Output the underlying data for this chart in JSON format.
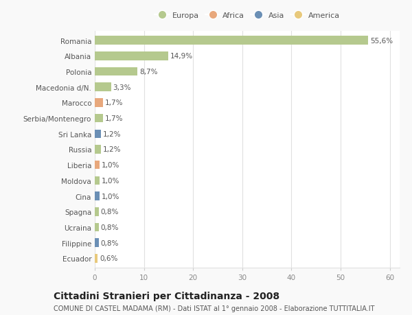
{
  "categories": [
    "Romania",
    "Albania",
    "Polonia",
    "Macedonia d/N.",
    "Marocco",
    "Serbia/Montenegro",
    "Sri Lanka",
    "Russia",
    "Liberia",
    "Moldova",
    "Cina",
    "Spagna",
    "Ucraina",
    "Filippine",
    "Ecuador"
  ],
  "values": [
    55.6,
    14.9,
    8.7,
    3.3,
    1.7,
    1.7,
    1.2,
    1.2,
    1.0,
    1.0,
    1.0,
    0.8,
    0.8,
    0.8,
    0.6
  ],
  "labels": [
    "55,6%",
    "14,9%",
    "8,7%",
    "3,3%",
    "1,7%",
    "1,7%",
    "1,2%",
    "1,2%",
    "1,0%",
    "1,0%",
    "1,0%",
    "0,8%",
    "0,8%",
    "0,8%",
    "0,6%"
  ],
  "colors": [
    "#b5c98e",
    "#b5c98e",
    "#b5c98e",
    "#b5c98e",
    "#e8a87c",
    "#b5c98e",
    "#6b8fb5",
    "#b5c98e",
    "#e8a87c",
    "#b5c98e",
    "#6b8fb5",
    "#b5c98e",
    "#b5c98e",
    "#6b8fb5",
    "#e8c97c"
  ],
  "legend_labels": [
    "Europa",
    "Africa",
    "Asia",
    "America"
  ],
  "legend_colors": [
    "#b5c98e",
    "#e8a87c",
    "#6b8fb5",
    "#e8c97c"
  ],
  "title": "Cittadini Stranieri per Cittadinanza - 2008",
  "subtitle": "COMUNE DI CASTEL MADAMA (RM) - Dati ISTAT al 1° gennaio 2008 - Elaborazione TUTTITALIA.IT",
  "xlim": [
    0,
    62
  ],
  "xticks": [
    0,
    10,
    20,
    30,
    40,
    50,
    60
  ],
  "background_color": "#f9f9f9",
  "plot_bg_color": "#ffffff",
  "grid_color": "#e0e0e0",
  "bar_height": 0.55,
  "label_fontsize": 7.5,
  "tick_fontsize": 7.5,
  "title_fontsize": 10,
  "subtitle_fontsize": 7
}
